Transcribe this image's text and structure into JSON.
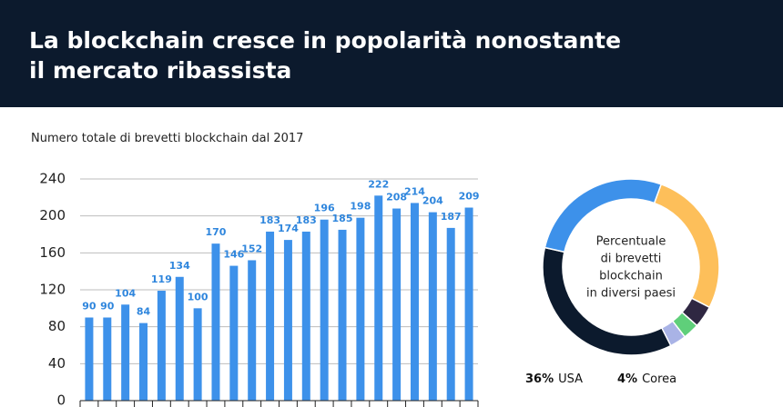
{
  "header": {
    "title_lines": [
      "La blockchain cresce in popolarità nonostante",
      "il mercato ribassista"
    ]
  },
  "chart_data": [
    {
      "type": "bar",
      "title": "Numero totale di brevetti blockchain dal 2017",
      "values": [
        90,
        90,
        104,
        84,
        119,
        134,
        100,
        170,
        146,
        152,
        183,
        174,
        183,
        196,
        185,
        198,
        222,
        208,
        214,
        204,
        187,
        209
      ],
      "color": "#3d91ea",
      "label_color": "#2f86dd",
      "ylim": [
        0,
        240
      ],
      "yticks": [
        0,
        40,
        80,
        120,
        160,
        200,
        240
      ],
      "grid": true
    },
    {
      "type": "donut",
      "center_text": [
        "Percentuale",
        "di brevetti",
        "blockchain",
        "in diversi paesi"
      ],
      "values": [
        27,
        4,
        3,
        3,
        36,
        27
      ],
      "names": [
        null,
        "Corea",
        null,
        null,
        "USA",
        null
      ],
      "value_labels": [
        null,
        "4%",
        null,
        null,
        "36%",
        null
      ],
      "colors": [
        "#fdbf5a",
        "#2f2742",
        "#5fcf7a",
        "#a9b3e6",
        "#0c1a2d",
        "#3d91ea"
      ]
    }
  ]
}
